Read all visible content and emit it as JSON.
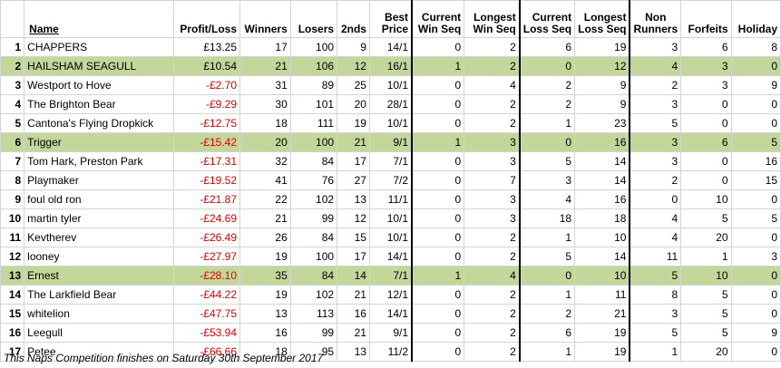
{
  "headers": {
    "rank": "",
    "name": "Name",
    "profit": "Profit/Loss",
    "winners": "Winners",
    "losers": "Losers",
    "seconds": "2nds",
    "best_price": [
      "Best",
      "Price"
    ],
    "current_win": [
      "Current",
      "Win Seq"
    ],
    "longest_win": [
      "Longest",
      "Win Seq"
    ],
    "current_loss": [
      "Current",
      "Loss Seq"
    ],
    "longest_loss": [
      "Longest",
      "Loss Seq"
    ],
    "non_runners": [
      "Non",
      "Runners"
    ],
    "forfeits": "Forfeits",
    "holiday": "Holiday"
  },
  "rows": [
    {
      "rank": "1",
      "name": "CHAPPERS",
      "profit": "£13.25",
      "neg": false,
      "hl": false,
      "winners": "17",
      "losers": "100",
      "seconds": "9",
      "best": "14/1",
      "cw": "0",
      "lw": "2",
      "cl": "6",
      "ll": "19",
      "nr": "3",
      "forfeits": "6",
      "holiday": "8"
    },
    {
      "rank": "2",
      "name": "HAILSHAM SEAGULL",
      "profit": "£10.54",
      "neg": false,
      "hl": true,
      "winners": "21",
      "losers": "106",
      "seconds": "12",
      "best": "16/1",
      "cw": "1",
      "lw": "2",
      "cl": "0",
      "ll": "12",
      "nr": "4",
      "forfeits": "3",
      "holiday": "0"
    },
    {
      "rank": "3",
      "name": "Westport to Hove",
      "profit": "-£2.70",
      "neg": true,
      "hl": false,
      "winners": "31",
      "losers": "89",
      "seconds": "25",
      "best": "10/1",
      "cw": "0",
      "lw": "4",
      "cl": "2",
      "ll": "9",
      "nr": "2",
      "forfeits": "3",
      "holiday": "9"
    },
    {
      "rank": "4",
      "name": "The Brighton Bear",
      "profit": "-£9.29",
      "neg": true,
      "hl": false,
      "winners": "30",
      "losers": "101",
      "seconds": "20",
      "best": "28/1",
      "cw": "0",
      "lw": "2",
      "cl": "2",
      "ll": "9",
      "nr": "3",
      "forfeits": "0",
      "holiday": "0"
    },
    {
      "rank": "5",
      "name": "Cantona's Flying Dropkick",
      "profit": "-£12.75",
      "neg": true,
      "hl": false,
      "winners": "18",
      "losers": "111",
      "seconds": "19",
      "best": "10/1",
      "cw": "0",
      "lw": "2",
      "cl": "1",
      "ll": "23",
      "nr": "5",
      "forfeits": "0",
      "holiday": "0"
    },
    {
      "rank": "6",
      "name": "Trigger",
      "profit": "-£15.42",
      "neg": true,
      "hl": true,
      "winners": "20",
      "losers": "100",
      "seconds": "21",
      "best": "9/1",
      "cw": "1",
      "lw": "3",
      "cl": "0",
      "ll": "16",
      "nr": "3",
      "forfeits": "6",
      "holiday": "5"
    },
    {
      "rank": "7",
      "name": "Tom Hark, Preston Park",
      "profit": "-£17.31",
      "neg": true,
      "hl": false,
      "winners": "32",
      "losers": "84",
      "seconds": "17",
      "best": "7/1",
      "cw": "0",
      "lw": "3",
      "cl": "5",
      "ll": "14",
      "nr": "3",
      "forfeits": "0",
      "holiday": "16"
    },
    {
      "rank": "8",
      "name": "Playmaker",
      "profit": "-£19.52",
      "neg": true,
      "hl": false,
      "winners": "41",
      "losers": "76",
      "seconds": "27",
      "best": "7/2",
      "cw": "0",
      "lw": "7",
      "cl": "3",
      "ll": "14",
      "nr": "2",
      "forfeits": "0",
      "holiday": "15"
    },
    {
      "rank": "9",
      "name": "foul old ron",
      "profit": "-£21.87",
      "neg": true,
      "hl": false,
      "winners": "22",
      "losers": "102",
      "seconds": "13",
      "best": "11/1",
      "cw": "0",
      "lw": "3",
      "cl": "4",
      "ll": "16",
      "nr": "0",
      "forfeits": "10",
      "holiday": "0"
    },
    {
      "rank": "10",
      "name": "martin tyler",
      "profit": "-£24.69",
      "neg": true,
      "hl": false,
      "winners": "21",
      "losers": "99",
      "seconds": "12",
      "best": "10/1",
      "cw": "0",
      "lw": "3",
      "cl": "18",
      "ll": "18",
      "nr": "4",
      "forfeits": "5",
      "holiday": "5"
    },
    {
      "rank": "11",
      "name": "Kevtherev",
      "profit": "-£26.49",
      "neg": true,
      "hl": false,
      "winners": "26",
      "losers": "84",
      "seconds": "15",
      "best": "10/1",
      "cw": "0",
      "lw": "2",
      "cl": "1",
      "ll": "10",
      "nr": "4",
      "forfeits": "20",
      "holiday": "0"
    },
    {
      "rank": "12",
      "name": "looney",
      "profit": "-£27.97",
      "neg": true,
      "hl": false,
      "winners": "19",
      "losers": "100",
      "seconds": "17",
      "best": "14/1",
      "cw": "0",
      "lw": "2",
      "cl": "5",
      "ll": "14",
      "nr": "11",
      "forfeits": "1",
      "holiday": "3"
    },
    {
      "rank": "13",
      "name": "Ernest",
      "profit": "-£28.10",
      "neg": true,
      "hl": true,
      "winners": "35",
      "losers": "84",
      "seconds": "14",
      "best": "7/1",
      "cw": "1",
      "lw": "4",
      "cl": "0",
      "ll": "10",
      "nr": "5",
      "forfeits": "10",
      "holiday": "0"
    },
    {
      "rank": "14",
      "name": "The Larkfield Bear",
      "profit": "-£44.22",
      "neg": true,
      "hl": false,
      "winners": "19",
      "losers": "102",
      "seconds": "21",
      "best": "12/1",
      "cw": "0",
      "lw": "2",
      "cl": "1",
      "ll": "11",
      "nr": "8",
      "forfeits": "5",
      "holiday": "0"
    },
    {
      "rank": "15",
      "name": "whitelion",
      "profit": "-£47.75",
      "neg": true,
      "hl": false,
      "winners": "13",
      "losers": "113",
      "seconds": "16",
      "best": "14/1",
      "cw": "0",
      "lw": "2",
      "cl": "2",
      "ll": "21",
      "nr": "3",
      "forfeits": "5",
      "holiday": "0"
    },
    {
      "rank": "16",
      "name": "Leegull",
      "profit": "-£53.94",
      "neg": true,
      "hl": false,
      "winners": "16",
      "losers": "99",
      "seconds": "21",
      "best": "9/1",
      "cw": "0",
      "lw": "2",
      "cl": "6",
      "ll": "19",
      "nr": "5",
      "forfeits": "5",
      "holiday": "9"
    },
    {
      "rank": "17",
      "name": "Petee",
      "profit": "-£66.66",
      "neg": true,
      "hl": false,
      "winners": "18",
      "losers": "95",
      "seconds": "13",
      "best": "11/2",
      "cw": "0",
      "lw": "2",
      "cl": "1",
      "ll": "19",
      "nr": "1",
      "forfeits": "20",
      "holiday": "0"
    }
  ],
  "footer": "This Naps Competition finishes on Saturday 30th September 2017",
  "colors": {
    "highlight": "#c4d79b",
    "negative": "#e00000",
    "grid": "#d4d4d4"
  }
}
